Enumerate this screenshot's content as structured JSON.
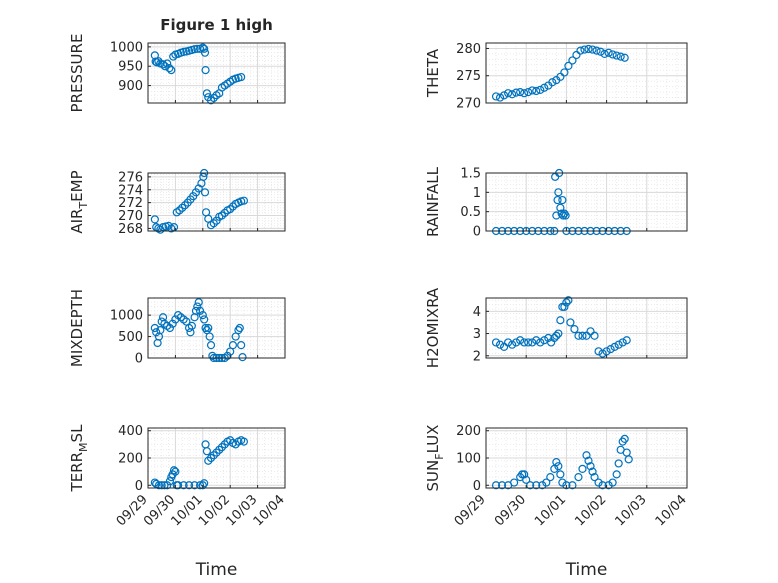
{
  "figure_title": "Figure 1 high",
  "colors": {
    "marker": "#0072BD",
    "axis": "#262626",
    "grid": "#d9d9d9",
    "background": "#ffffff"
  },
  "chart_data": [
    {
      "type": "scatter",
      "title": "Figure 1 high",
      "ylabel": "PRESSURE",
      "xlabel": "",
      "xlim": [
        "09/29",
        "10/04"
      ],
      "ylim": [
        855,
        1010
      ],
      "yticks": [
        1000,
        950,
        900
      ],
      "xticks": [
        "09/29",
        "09/30",
        "10/01",
        "10/02",
        "10/03",
        "10/04"
      ],
      "grid": true,
      "x": [
        0.25,
        0.28,
        0.32,
        0.38,
        0.45,
        0.55,
        0.62,
        0.7,
        0.78,
        0.85,
        0.92,
        1.0,
        1.1,
        1.2,
        1.3,
        1.4,
        1.5,
        1.6,
        1.7,
        1.8,
        1.9,
        2.0,
        2.05,
        2.08,
        2.1,
        2.15,
        2.2,
        2.3,
        2.4,
        2.5,
        2.6,
        2.7,
        2.8,
        2.9,
        3.0,
        3.1,
        3.2,
        3.3,
        3.4
      ],
      "y": [
        978,
        962,
        960,
        963,
        957,
        955,
        950,
        957,
        945,
        940,
        975,
        980,
        982,
        985,
        987,
        988,
        990,
        992,
        994,
        995,
        995,
        998,
        995,
        985,
        940,
        880,
        870,
        862,
        868,
        875,
        880,
        895,
        900,
        905,
        910,
        915,
        918,
        920,
        922
      ]
    },
    {
      "type": "scatter",
      "ylabel": "THETA",
      "xlabel": "",
      "xlim": [
        "09/29",
        "10/04"
      ],
      "ylim": [
        270,
        281
      ],
      "yticks": [
        280,
        275,
        270
      ],
      "xticks": [
        "09/29",
        "09/30",
        "10/01",
        "10/02",
        "10/03",
        "10/04"
      ],
      "grid": true,
      "x": [
        0.25,
        0.35,
        0.45,
        0.55,
        0.65,
        0.75,
        0.85,
        0.95,
        1.05,
        1.15,
        1.25,
        1.35,
        1.45,
        1.55,
        1.65,
        1.75,
        1.85,
        1.95,
        2.05,
        2.15,
        2.25,
        2.35,
        2.45,
        2.55,
        2.65,
        2.75,
        2.85,
        2.95,
        3.05,
        3.15,
        3.25,
        3.35,
        3.45
      ],
      "y": [
        271.2,
        271.0,
        271.4,
        271.8,
        271.6,
        271.9,
        272.0,
        271.8,
        272.0,
        272.3,
        272.2,
        272.4,
        272.8,
        273.2,
        273.8,
        274.2,
        274.8,
        275.6,
        276.8,
        277.8,
        278.8,
        279.6,
        279.8,
        279.9,
        279.8,
        279.6,
        279.4,
        279.0,
        279.2,
        278.9,
        278.7,
        278.5,
        278.3
      ]
    },
    {
      "type": "scatter",
      "ylabel": "AIR",
      "ylabel_sub": "T",
      "ylabel_rest": "EMP",
      "xlabel": "",
      "xlim": [
        "09/29",
        "10/04"
      ],
      "ylim": [
        267.6,
        276.6
      ],
      "yticks": [
        276,
        274,
        272,
        270,
        268
      ],
      "xticks": [
        "09/29",
        "09/30",
        "10/01",
        "10/02",
        "10/03",
        "10/04"
      ],
      "grid": true,
      "x": [
        0.25,
        0.3,
        0.38,
        0.45,
        0.55,
        0.65,
        0.75,
        0.85,
        0.95,
        1.05,
        1.15,
        1.25,
        1.35,
        1.45,
        1.55,
        1.65,
        1.75,
        1.85,
        1.95,
        2.02,
        2.05,
        2.08,
        2.12,
        2.2,
        2.3,
        2.4,
        2.5,
        2.6,
        2.7,
        2.8,
        2.9,
        3.0,
        3.1,
        3.2,
        3.3,
        3.4,
        3.5
      ],
      "y": [
        269.4,
        268.2,
        268.0,
        267.8,
        268.2,
        268.3,
        268.4,
        268.0,
        268.2,
        270.5,
        270.8,
        271.2,
        271.6,
        272.0,
        272.5,
        273.0,
        273.6,
        274.2,
        275.0,
        276.0,
        276.6,
        273.6,
        270.5,
        269.5,
        268.5,
        268.8,
        269.2,
        269.8,
        270.0,
        270.4,
        270.8,
        271.0,
        271.4,
        271.8,
        272.0,
        272.2,
        272.3
      ]
    },
    {
      "type": "scatter",
      "ylabel": "RAINFALL",
      "xlabel": "",
      "xlim": [
        "09/29",
        "10/04"
      ],
      "ylim": [
        0,
        1.5
      ],
      "yticks": [
        1.5,
        1,
        0.5,
        0
      ],
      "xticks": [
        "09/29",
        "09/30",
        "10/01",
        "10/02",
        "10/03",
        "10/04"
      ],
      "grid": true,
      "x": [
        0.25,
        0.4,
        0.55,
        0.7,
        0.85,
        1.0,
        1.15,
        1.3,
        1.45,
        1.6,
        1.7,
        1.72,
        1.75,
        1.78,
        1.8,
        1.82,
        1.85,
        1.88,
        1.9,
        1.92,
        1.95,
        1.98,
        2.0,
        2.15,
        2.3,
        2.45,
        2.6,
        2.75,
        2.9,
        3.05,
        3.2,
        3.35,
        3.5
      ],
      "y": [
        0,
        0,
        0,
        0,
        0,
        0,
        0,
        0,
        0,
        0,
        0,
        1.4,
        0.4,
        0.8,
        1.0,
        1.5,
        0.6,
        0.45,
        0.8,
        0.4,
        0.45,
        0.4,
        0,
        0,
        0,
        0,
        0,
        0,
        0,
        0,
        0,
        0,
        0
      ]
    },
    {
      "type": "scatter",
      "ylabel": "MIXDEPTH",
      "xlabel": "",
      "xlim": [
        "09/29",
        "10/04"
      ],
      "ylim": [
        0,
        1400
      ],
      "yticks": [
        1000,
        500,
        0
      ],
      "xticks": [
        "09/29",
        "09/30",
        "10/01",
        "10/02",
        "10/03",
        "10/04"
      ],
      "grid": true,
      "x": [
        0.25,
        0.3,
        0.35,
        0.4,
        0.45,
        0.5,
        0.55,
        0.6,
        0.7,
        0.8,
        0.9,
        1.0,
        1.1,
        1.2,
        1.3,
        1.4,
        1.5,
        1.55,
        1.6,
        1.7,
        1.75,
        1.8,
        1.85,
        1.9,
        2.0,
        2.05,
        2.1,
        2.15,
        2.2,
        2.25,
        2.3,
        2.35,
        2.4,
        2.5,
        2.6,
        2.7,
        2.8,
        2.9,
        3.0,
        3.1,
        3.2,
        3.3,
        3.35,
        3.4,
        3.45
      ],
      "y": [
        700,
        600,
        350,
        500,
        650,
        850,
        950,
        800,
        750,
        700,
        800,
        900,
        1000,
        950,
        900,
        850,
        700,
        600,
        750,
        950,
        1100,
        1200,
        1300,
        1100,
        1000,
        900,
        700,
        650,
        700,
        500,
        300,
        50,
        0,
        0,
        0,
        0,
        0,
        50,
        150,
        300,
        500,
        650,
        700,
        300,
        20
      ]
    },
    {
      "type": "scatter",
      "ylabel": "H2OMIXRA",
      "xlabel": "",
      "xlim": [
        "09/29",
        "10/04"
      ],
      "ylim": [
        1.9,
        4.6
      ],
      "yticks": [
        4,
        3,
        2
      ],
      "xticks": [
        "09/29",
        "09/30",
        "10/01",
        "10/02",
        "10/03",
        "10/04"
      ],
      "grid": true,
      "x": [
        0.25,
        0.35,
        0.45,
        0.55,
        0.65,
        0.75,
        0.85,
        0.95,
        1.05,
        1.15,
        1.25,
        1.35,
        1.45,
        1.55,
        1.62,
        1.7,
        1.75,
        1.8,
        1.85,
        1.9,
        1.95,
        2.0,
        2.05,
        2.1,
        2.2,
        2.3,
        2.4,
        2.5,
        2.6,
        2.7,
        2.8,
        2.9,
        3.0,
        3.1,
        3.2,
        3.3,
        3.4,
        3.5
      ],
      "y": [
        2.6,
        2.5,
        2.4,
        2.6,
        2.5,
        2.6,
        2.7,
        2.6,
        2.6,
        2.6,
        2.7,
        2.6,
        2.7,
        2.8,
        2.6,
        2.8,
        2.9,
        3.0,
        3.6,
        4.2,
        4.2,
        4.4,
        4.5,
        3.5,
        3.2,
        2.9,
        2.9,
        2.9,
        3.1,
        2.9,
        2.2,
        2.1,
        2.2,
        2.3,
        2.4,
        2.5,
        2.6,
        2.7
      ]
    },
    {
      "type": "scatter",
      "ylabel": "TERR",
      "ylabel_sub": "M",
      "ylabel_rest": "SL",
      "xlabel": "Time",
      "xlim": [
        "09/29",
        "10/04"
      ],
      "ylim": [
        -20,
        420
      ],
      "yticks": [
        400,
        200,
        0
      ],
      "xticks": [
        "09/29",
        "09/30",
        "10/01",
        "10/02",
        "10/03",
        "10/04"
      ],
      "grid": true,
      "x": [
        0.25,
        0.3,
        0.4,
        0.5,
        0.6,
        0.7,
        0.8,
        0.85,
        0.9,
        0.95,
        1.0,
        1.05,
        1.1,
        1.3,
        1.5,
        1.7,
        1.9,
        2.0,
        2.05,
        2.1,
        2.15,
        2.2,
        2.3,
        2.4,
        2.5,
        2.6,
        2.7,
        2.8,
        2.9,
        3.0,
        3.1,
        3.2,
        3.3,
        3.4,
        3.5
      ],
      "y": [
        20,
        10,
        0,
        0,
        0,
        0,
        30,
        60,
        80,
        110,
        100,
        0,
        0,
        0,
        0,
        0,
        0,
        0,
        15,
        300,
        250,
        180,
        200,
        220,
        240,
        260,
        280,
        300,
        320,
        330,
        310,
        300,
        320,
        330,
        320
      ]
    },
    {
      "type": "scatter",
      "ylabel": "SUN",
      "ylabel_sub": "F",
      "ylabel_rest": "LUX",
      "xlabel": "Time",
      "xlim": [
        "09/29",
        "10/04"
      ],
      "ylim": [
        -10,
        210
      ],
      "yticks": [
        200,
        100,
        0
      ],
      "xticks": [
        "09/29",
        "09/30",
        "10/01",
        "10/02",
        "10/03",
        "10/04"
      ],
      "grid": true,
      "x": [
        0.25,
        0.4,
        0.55,
        0.7,
        0.85,
        0.9,
        0.95,
        1.0,
        1.1,
        1.25,
        1.4,
        1.5,
        1.6,
        1.7,
        1.75,
        1.8,
        1.85,
        1.9,
        2.0,
        2.15,
        2.3,
        2.4,
        2.5,
        2.55,
        2.6,
        2.65,
        2.7,
        2.8,
        2.9,
        3.05,
        3.15,
        3.25,
        3.3,
        3.35,
        3.4,
        3.45,
        3.5,
        3.55
      ],
      "y": [
        0,
        0,
        0,
        10,
        30,
        40,
        40,
        20,
        0,
        0,
        0,
        10,
        30,
        60,
        85,
        70,
        40,
        10,
        0,
        0,
        30,
        60,
        110,
        90,
        70,
        50,
        30,
        10,
        0,
        0,
        10,
        40,
        80,
        130,
        160,
        170,
        120,
        95
      ]
    }
  ]
}
